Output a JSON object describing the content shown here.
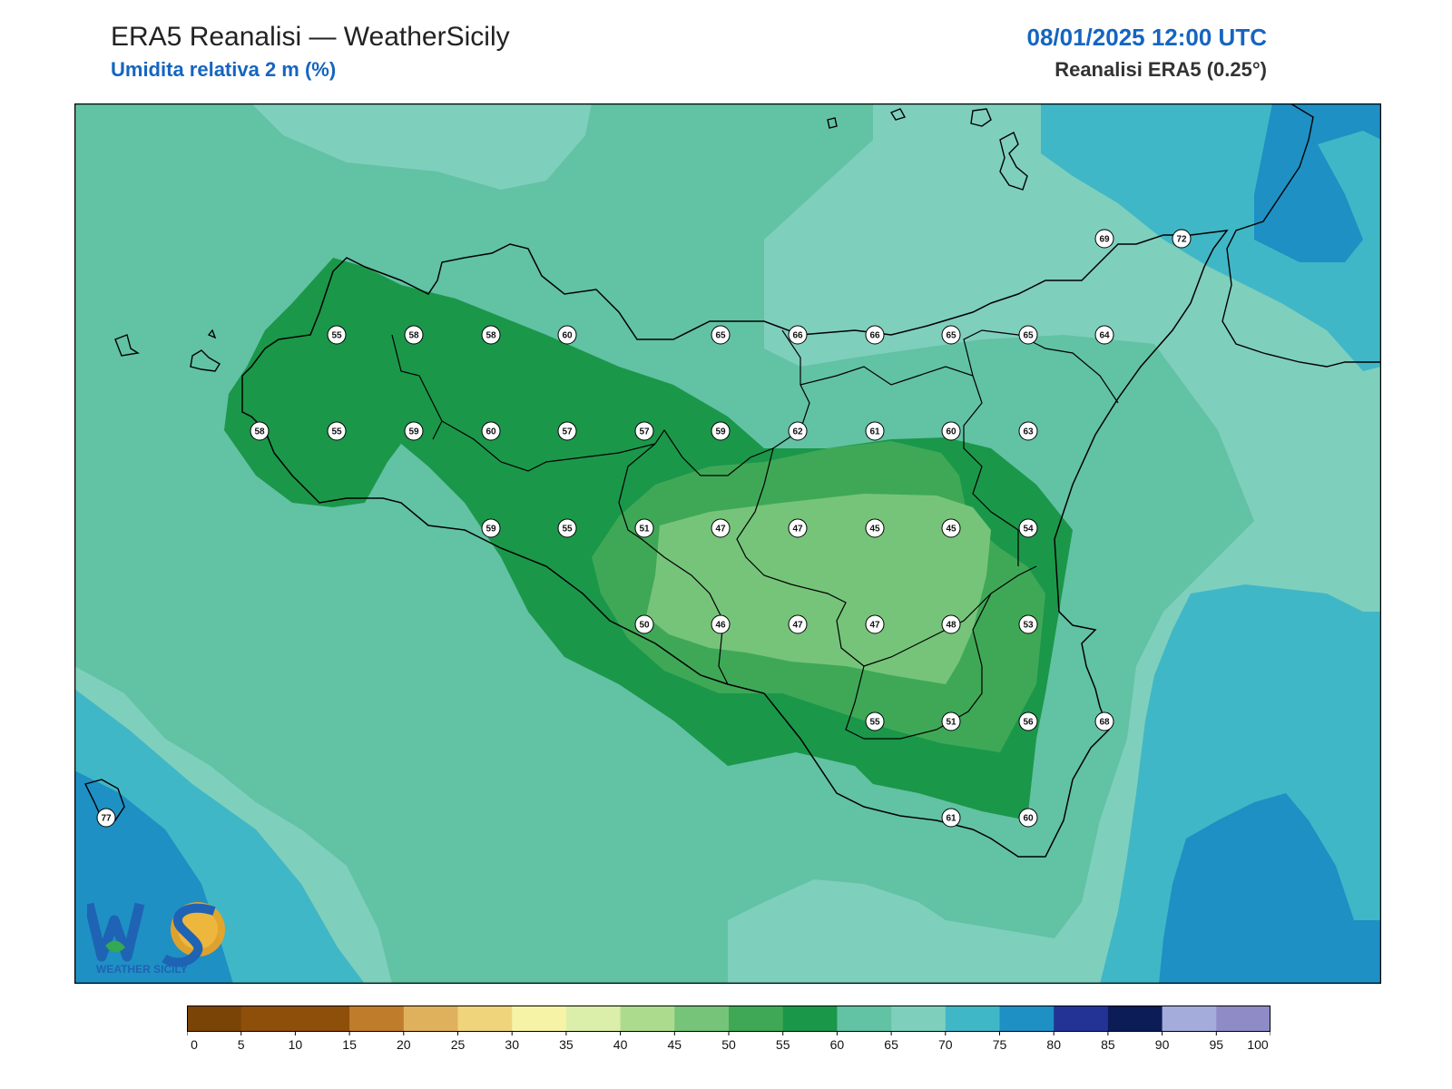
{
  "header": {
    "title": "ERA5 Reanalisi — WeatherSicily",
    "subtitle": "Umidita relativa 2 m (%)",
    "datetime": "08/01/2025 12:00 UTC",
    "source": "Reanalisi ERA5 (0.25°)"
  },
  "legend": {
    "ticks": [
      "0",
      "5",
      "10",
      "15",
      "20",
      "25",
      "30",
      "35",
      "40",
      "45",
      "50",
      "55",
      "60",
      "65",
      "70",
      "75",
      "80",
      "85",
      "90",
      "95",
      "100"
    ],
    "colors": [
      "#7a4406",
      "#8e4f0b",
      "#8e4f0b",
      "#bf7c2b",
      "#e0b15c",
      "#f0d47c",
      "#f7f3a6",
      "#dbeeaa",
      "#addb8e",
      "#76c47a",
      "#3fa857",
      "#1b974a",
      "#62c2a4",
      "#7fcfbd",
      "#40b7c6",
      "#1e90c4",
      "#233395",
      "#0c1c57",
      "#a3acdb",
      "#8f8bc7"
    ]
  },
  "stations": [
    {
      "v": "69"
    },
    {
      "v": "72"
    },
    {
      "v": "55"
    },
    {
      "v": "58"
    },
    {
      "v": "58"
    },
    {
      "v": "60"
    },
    {
      "v": "65"
    },
    {
      "v": "66"
    },
    {
      "v": "66"
    },
    {
      "v": "65"
    },
    {
      "v": "65"
    },
    {
      "v": "64"
    },
    {
      "v": "58"
    },
    {
      "v": "55"
    },
    {
      "v": "59"
    },
    {
      "v": "60"
    },
    {
      "v": "57"
    },
    {
      "v": "57"
    },
    {
      "v": "59"
    },
    {
      "v": "62"
    },
    {
      "v": "61"
    },
    {
      "v": "60"
    },
    {
      "v": "63"
    },
    {
      "v": "59"
    },
    {
      "v": "55"
    },
    {
      "v": "51"
    },
    {
      "v": "47"
    },
    {
      "v": "47"
    },
    {
      "v": "45"
    },
    {
      "v": "45"
    },
    {
      "v": "54"
    },
    {
      "v": "50"
    },
    {
      "v": "46"
    },
    {
      "v": "47"
    },
    {
      "v": "47"
    },
    {
      "v": "48"
    },
    {
      "v": "53"
    },
    {
      "v": "55"
    },
    {
      "v": "51"
    },
    {
      "v": "56"
    },
    {
      "v": "68"
    },
    {
      "v": "77"
    },
    {
      "v": "61"
    },
    {
      "v": "60"
    }
  ],
  "logo": {
    "mark": "WS",
    "text": "WEATHER SICILY"
  }
}
